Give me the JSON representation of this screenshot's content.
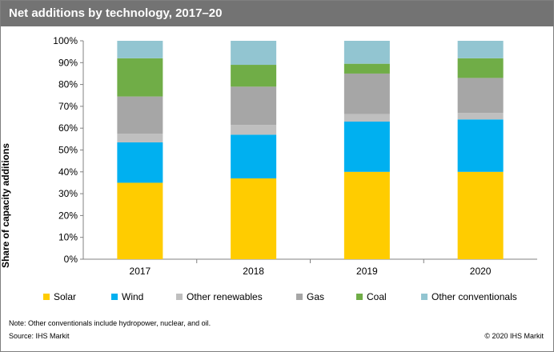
{
  "title": "Net additions by technology, 2017–20",
  "note": "Note: Other conventionals include hydropower, nuclear, and oil.",
  "source": "Source: IHS Markit",
  "copyright": "© 2020 IHS Markit",
  "chart_data": {
    "type": "bar",
    "stacked": true,
    "title": "Net additions by technology, 2017–20",
    "xlabel": "",
    "ylabel": "Share of capacity additions",
    "ylim": [
      0,
      100
    ],
    "yticks": [
      "0%",
      "10%",
      "20%",
      "30%",
      "40%",
      "50%",
      "60%",
      "70%",
      "80%",
      "90%",
      "100%"
    ],
    "categories": [
      "2017",
      "2018",
      "2019",
      "2020"
    ],
    "grid": false,
    "legend_position": "bottom",
    "series": [
      {
        "name": "Solar",
        "color": "#ffcc00",
        "values": [
          35,
          37,
          40,
          40
        ]
      },
      {
        "name": "Wind",
        "color": "#00b0f0",
        "values": [
          18.5,
          20,
          23,
          24
        ]
      },
      {
        "name": "Other renewables",
        "color": "#bfbfbf",
        "values": [
          4,
          4.5,
          3.5,
          3
        ]
      },
      {
        "name": "Gas",
        "color": "#a6a6a6",
        "values": [
          17,
          17.5,
          18.5,
          16
        ]
      },
      {
        "name": "Coal",
        "color": "#70ad47",
        "values": [
          17.5,
          10,
          4.5,
          9
        ]
      },
      {
        "name": "Other conventionals",
        "color": "#92c5d1",
        "values": [
          8,
          11,
          10.5,
          8
        ]
      }
    ]
  }
}
